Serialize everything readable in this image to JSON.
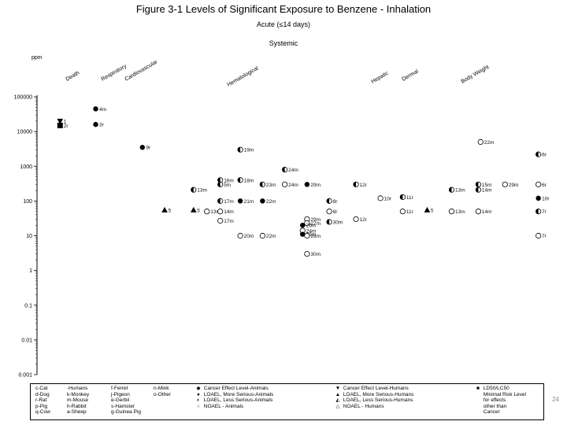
{
  "title": "Figure 3-1  Levels of Significant Exposure to Benzene - Inhalation",
  "subtitle": "Acute (≤14 days)",
  "section": "Systemic",
  "page_number": "24",
  "chart_data": {
    "type": "scatter",
    "ylabel": "ppm",
    "yscale": "log",
    "ylim": [
      0.001,
      100000
    ],
    "yticks": [
      "100000",
      "10000",
      "1000",
      "100",
      "10",
      "1",
      "0.1",
      "0.01",
      "0.001"
    ],
    "categories": [
      "Death",
      "Respiratory",
      "Cardiovascular",
      "Hematological",
      "Hepatic",
      "Dermal",
      "Body Weight"
    ],
    "points": [
      {
        "col": 0.2,
        "y": 20000,
        "label": "1",
        "shape": "tri-down"
      },
      {
        "col": 0.2,
        "y": 15000,
        "label": "2r",
        "shape": "square"
      },
      {
        "col": 1.0,
        "y": 45000,
        "label": "4m",
        "shape": "circle-filled"
      },
      {
        "col": 1.0,
        "y": 16000,
        "label": "3r",
        "shape": "circle-filled"
      },
      {
        "col": 2.05,
        "y": 3500,
        "label": "9r",
        "shape": "circle-filled"
      },
      {
        "col": 2.55,
        "y": 55,
        "label": "5",
        "shape": "tri"
      },
      {
        "col": 3.2,
        "y": 210,
        "label": "13m",
        "shape": "circle-half"
      },
      {
        "col": 3.2,
        "y": 55,
        "label": "5",
        "shape": "tri"
      },
      {
        "col": 3.5,
        "y": 50,
        "label": "13m",
        "shape": "circle-open"
      },
      {
        "col": 3.8,
        "y": 400,
        "label": "16m",
        "shape": "circle-half"
      },
      {
        "col": 3.8,
        "y": 300,
        "label": "5m",
        "shape": "circle-half"
      },
      {
        "col": 3.8,
        "y": 100,
        "label": "17m",
        "shape": "circle-half"
      },
      {
        "col": 3.8,
        "y": 50,
        "label": "14m",
        "shape": "circle-open"
      },
      {
        "col": 3.8,
        "y": 27,
        "label": "17m",
        "shape": "circle-open"
      },
      {
        "col": 4.25,
        "y": 3000,
        "label": "19m",
        "shape": "circle-half"
      },
      {
        "col": 4.25,
        "y": 400,
        "label": "18m",
        "shape": "circle-half"
      },
      {
        "col": 4.25,
        "y": 100,
        "label": "21m",
        "shape": "circle-filled"
      },
      {
        "col": 4.25,
        "y": 10,
        "label": "20m",
        "shape": "circle-open"
      },
      {
        "col": 4.75,
        "y": 300,
        "label": "23m",
        "shape": "circle-half"
      },
      {
        "col": 4.75,
        "y": 100,
        "label": "22m",
        "shape": "circle-filled"
      },
      {
        "col": 4.75,
        "y": 10,
        "label": "22m",
        "shape": "circle-open"
      },
      {
        "col": 5.25,
        "y": 800,
        "label": "24m",
        "shape": "circle-half"
      },
      {
        "col": 5.25,
        "y": 300,
        "label": "24m",
        "shape": "circle-open"
      },
      {
        "col": 5.75,
        "y": 300,
        "label": "29m",
        "shape": "circle-filled"
      },
      {
        "col": 5.75,
        "y": 30,
        "label": "29m",
        "shape": "circle-open"
      },
      {
        "col": 5.75,
        "y": 23,
        "label": "27m",
        "shape": "circle-open"
      },
      {
        "col": 5.65,
        "y": 20,
        "label": "26m",
        "shape": "circle-filled"
      },
      {
        "col": 5.65,
        "y": 14,
        "label": "24m",
        "shape": "circle-open"
      },
      {
        "col": 5.65,
        "y": 11,
        "label": "25m",
        "shape": "circle-filled"
      },
      {
        "col": 5.75,
        "y": 10,
        "label": "28m",
        "shape": "circle-open"
      },
      {
        "col": 5.75,
        "y": 3,
        "label": "30m",
        "shape": "circle-open"
      },
      {
        "col": 6.25,
        "y": 100,
        "label": "8r",
        "shape": "circle-half"
      },
      {
        "col": 6.25,
        "y": 50,
        "label": "8r",
        "shape": "circle-open"
      },
      {
        "col": 6.25,
        "y": 25,
        "label": "30m",
        "shape": "circle-half"
      },
      {
        "col": 6.85,
        "y": 300,
        "label": "12r",
        "shape": "circle-half"
      },
      {
        "col": 6.85,
        "y": 30,
        "label": "12r",
        "shape": "circle-open"
      },
      {
        "col": 7.4,
        "y": 120,
        "label": "10r",
        "shape": "circle-open"
      },
      {
        "col": 7.9,
        "y": 130,
        "label": "11r",
        "shape": "circle-half"
      },
      {
        "col": 7.9,
        "y": 50,
        "label": "11r",
        "shape": "circle-open"
      },
      {
        "col": 8.45,
        "y": 55,
        "label": "5",
        "shape": "tri"
      },
      {
        "col": 9.0,
        "y": 210,
        "label": "13m",
        "shape": "circle-half"
      },
      {
        "col": 9.0,
        "y": 50,
        "label": "13m",
        "shape": "circle-open"
      },
      {
        "col": 9.6,
        "y": 300,
        "label": "15m",
        "shape": "circle-half"
      },
      {
        "col": 9.6,
        "y": 210,
        "label": "14m",
        "shape": "circle-half"
      },
      {
        "col": 9.6,
        "y": 50,
        "label": "14m",
        "shape": "circle-open"
      },
      {
        "col": 9.65,
        "y": 5000,
        "label": "22m",
        "shape": "circle-open"
      },
      {
        "col": 10.2,
        "y": 300,
        "label": "29m",
        "shape": "circle-open"
      },
      {
        "col": 10.95,
        "y": 2200,
        "label": "6r",
        "shape": "circle-half"
      },
      {
        "col": 10.95,
        "y": 300,
        "label": "6r",
        "shape": "circle-open"
      },
      {
        "col": 10.95,
        "y": 120,
        "label": "10r",
        "shape": "circle-filled"
      },
      {
        "col": 10.95,
        "y": 50,
        "label": "7r",
        "shape": "circle-half"
      },
      {
        "col": 10.95,
        "y": 10,
        "label": "7r",
        "shape": "circle-open"
      }
    ]
  },
  "legend": {
    "species": [
      [
        "c-Cat",
        "-Humans",
        "f-Ferret",
        "n-Mink"
      ],
      [
        "d-Dog",
        "k-Monkey",
        "j-Pigeon",
        "o-Other"
      ],
      [
        "r-Rat",
        "m-Mouse",
        "e-Gerbil",
        ""
      ],
      [
        "p-Pig",
        "h-Rabbit",
        "s-Hamster",
        ""
      ],
      [
        "q-Cow",
        "a-Sheep",
        "g-Guinea Pig",
        ""
      ]
    ],
    "animals": [
      {
        "symbol": "◆",
        "text": "Cancer Effect Level-Animals"
      },
      {
        "symbol": "●",
        "text": "LOAEL, More Serious-Animals"
      },
      {
        "symbol": "◐",
        "text": "LOAEL, Less Serious-Animals"
      },
      {
        "symbol": "○",
        "text": "NOAEL - Animals"
      }
    ],
    "humans": [
      {
        "symbol": "▼",
        "text": "Cancer Effect Level-Humans"
      },
      {
        "symbol": "▲",
        "text": "LOAEL, More Serious-Humans"
      },
      {
        "symbol": "◭",
        "text": "LOAEL, Less Serious-Humans"
      },
      {
        "symbol": "△",
        "text": "NOAEL - Humans"
      }
    ],
    "other": [
      {
        "symbol": "■",
        "text": "LD50/LC50"
      },
      {
        "symbol": "",
        "text": "Minimal Risk Level"
      },
      {
        "symbol": "",
        "text": "for effects"
      },
      {
        "symbol": "",
        "text": "other than"
      },
      {
        "symbol": "",
        "text": "Cancer"
      }
    ]
  }
}
